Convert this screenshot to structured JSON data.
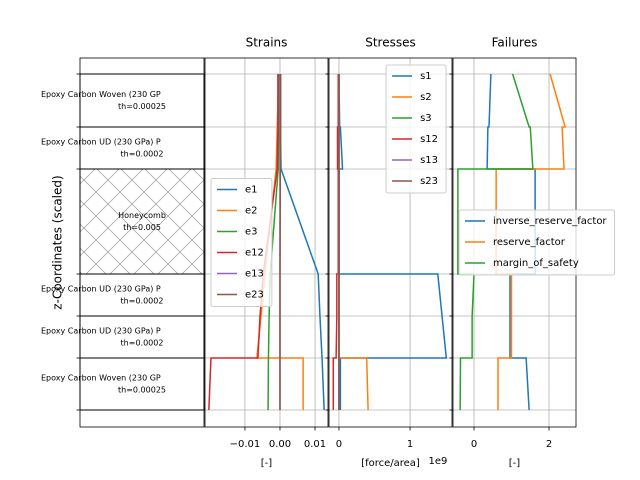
{
  "chart_data": [
    {
      "type": "layup",
      "ylabel": "z-Coordinates (scaled)",
      "ylim": [
        -17,
        352
      ],
      "yticks": [
        0,
        52,
        94,
        136,
        241,
        283,
        336
      ],
      "layers": [
        {
          "name": "Epoxy Carbon Woven (230 GP",
          "thickness": "th=0.00025",
          "z": [
            283,
            336
          ],
          "hatch": false
        },
        {
          "name": "Epoxy Carbon UD (230 GPa) P",
          "thickness": "th=0.0002",
          "z": [
            241,
            283
          ],
          "hatch": false
        },
        {
          "name": "Honeycomb",
          "thickness": "th=0.005",
          "z": [
            136,
            241
          ],
          "hatch": true
        },
        {
          "name": "Epoxy Carbon UD (230 GPa) P",
          "thickness": "th=0.0002",
          "z": [
            94,
            136
          ],
          "hatch": false
        },
        {
          "name": "Epoxy Carbon UD (230 GPa) P",
          "thickness": "th=0.0002",
          "z": [
            52,
            94
          ],
          "hatch": false
        },
        {
          "name": "Epoxy Carbon Woven (230 GP",
          "thickness": "th=0.00025",
          "z": [
            0,
            52
          ],
          "hatch": false
        }
      ]
    },
    {
      "type": "line",
      "title": "Strains",
      "xlabel": "[-]",
      "xlim": [
        -0.0214,
        0.0137
      ],
      "xticks": [
        {
          "value": -0.01,
          "label": "−0.01"
        },
        {
          "value": 0,
          "label": "0.00"
        },
        0.01
      ],
      "ylim": [
        -17,
        352
      ],
      "yticks": [
        0,
        52,
        94,
        136,
        241,
        283,
        336
      ],
      "grid": true,
      "legend": "center left",
      "z": [
        336,
        283,
        283,
        241,
        241,
        136,
        136,
        94,
        94,
        52,
        52,
        0
      ],
      "series": [
        {
          "name": "e1",
          "color": "#1f77b4",
          "values": [
            0.0,
            0.0001,
            0.0001,
            0.0003,
            0.0003,
            0.0109,
            0.0109,
            0.0114,
            0.0114,
            0.012,
            0.012,
            0.0126
          ]
        },
        {
          "name": "e2",
          "color": "#ff7f0e",
          "values": [
            -0.0003,
            -0.0008,
            -0.0008,
            -0.0011,
            -0.0011,
            -0.0043,
            -0.0043,
            -0.0054,
            -0.0054,
            -0.0066,
            0.0066,
            0.0066
          ]
        },
        {
          "name": "e3",
          "color": "#2ca02c",
          "values": [
            -0.0002,
            -0.0003,
            -0.0003,
            -0.0005,
            -0.0005,
            -0.0028,
            -0.0028,
            -0.0031,
            -0.0031,
            -0.0033,
            -0.0033,
            -0.0034
          ]
        },
        {
          "name": "e12",
          "color": "#d62728",
          "values": [
            -0.0006,
            -0.0006,
            -0.0006,
            -0.0008,
            -0.0008,
            -0.0048,
            -0.0048,
            -0.0057,
            -0.0057,
            -0.0063,
            -0.0197,
            -0.0203
          ]
        },
        {
          "name": "e13",
          "color": "#9467bd",
          "values": [
            0,
            0,
            0,
            0,
            0,
            0,
            0,
            0,
            0,
            0,
            0,
            0
          ]
        },
        {
          "name": "e23",
          "color": "#8c564b",
          "values": [
            0.0002,
            0.0002,
            0.0002,
            0.0001,
            0.0001,
            0,
            0,
            0,
            0,
            0,
            0,
            0
          ]
        }
      ]
    },
    {
      "type": "line",
      "title": "Stresses",
      "xlabel": "[force/area]",
      "offset_label": "1e9",
      "xlim": [
        -0.14,
        1.59
      ],
      "xticks": [
        0,
        1
      ],
      "ylim": [
        -17,
        352
      ],
      "yticks": [
        0,
        52,
        94,
        136,
        241,
        283,
        336
      ],
      "grid": true,
      "legend": "upper right",
      "z": [
        336,
        283,
        283,
        241,
        241,
        136,
        136,
        94,
        94,
        52,
        52,
        0
      ],
      "series": [
        {
          "name": "s1",
          "color": "#1f77b4",
          "values": [
            0.0,
            0.01,
            0.02,
            0.05,
            0.0,
            0.0,
            1.39,
            1.45,
            1.45,
            1.51,
            0.02,
            0.02
          ]
        },
        {
          "name": "s2",
          "color": "#ff7f0e",
          "values": [
            0,
            0,
            0,
            0,
            0,
            0,
            0,
            0,
            0,
            0,
            0.39,
            0.41
          ]
        },
        {
          "name": "s3",
          "color": "#2ca02c",
          "values": [
            0,
            0,
            0,
            0,
            0,
            0,
            0,
            0,
            0,
            0,
            0,
            0
          ]
        },
        {
          "name": "s12",
          "color": "#d62728",
          "values": [
            -0.01,
            -0.01,
            -0.02,
            -0.02,
            -0.01,
            -0.01,
            -0.03,
            -0.03,
            -0.03,
            -0.04,
            -0.08,
            -0.08
          ]
        },
        {
          "name": "s13",
          "color": "#9467bd",
          "values": [
            0,
            0,
            0,
            0,
            0,
            0,
            0,
            0,
            0,
            0,
            0,
            0
          ]
        },
        {
          "name": "s23",
          "color": "#8c564b",
          "values": [
            0,
            0,
            0,
            0,
            0,
            0,
            0,
            0,
            0,
            0,
            0,
            0
          ]
        }
      ]
    },
    {
      "type": "line",
      "title": "Failures",
      "xlabel": "[-]",
      "xlim": [
        -0.56,
        2.72
      ],
      "xticks": [
        0,
        2
      ],
      "ylim": [
        -17,
        352
      ],
      "yticks": [
        0,
        52,
        94,
        136,
        241,
        283,
        336
      ],
      "grid": true,
      "legend": "center left",
      "z": [
        336,
        283,
        283,
        241,
        241,
        136,
        136,
        94,
        94,
        52,
        52,
        0
      ],
      "series": [
        {
          "name": "inverse_reserve_factor",
          "color": "#1f77b4",
          "values": [
            0.45,
            0.4,
            0.37,
            0.35,
            1.63,
            1.63,
            0.96,
            0.96,
            0.96,
            0.96,
            1.39,
            1.47
          ]
        },
        {
          "name": "reserve_factor",
          "color": "#ff7f0e",
          "values": [
            2.03,
            2.43,
            2.35,
            2.4,
            0.59,
            0.59,
            1.0,
            1.0,
            1.0,
            1.0,
            0.64,
            0.64
          ]
        },
        {
          "name": "margin_of_safety",
          "color": "#2ca02c",
          "values": [
            1.03,
            1.47,
            1.5,
            1.57,
            -0.43,
            -0.43,
            0.0,
            -0.05,
            -0.05,
            -0.05,
            -0.36,
            -0.37
          ]
        }
      ]
    }
  ]
}
